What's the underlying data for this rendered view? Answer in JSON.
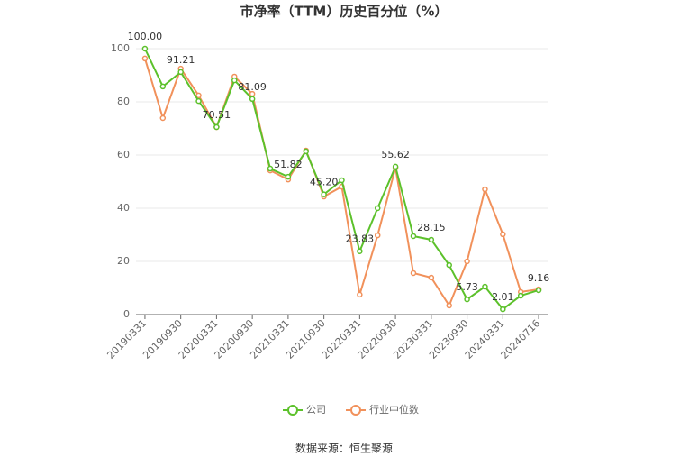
{
  "chart_data": {
    "type": "line",
    "title": "市净率（TTM）历史百分位（%）",
    "categories": [
      "20190331",
      null,
      "20190930",
      null,
      "20200331",
      null,
      "20200930",
      null,
      "20210331",
      null,
      "20210930",
      null,
      "20220331",
      null,
      "20220930",
      null,
      "20230331",
      null,
      "20230930",
      null,
      "20240331",
      null,
      "20240716"
    ],
    "series": [
      {
        "name": "公司",
        "color": "#5cc12b",
        "values": [
          100.0,
          85.8,
          91.21,
          80.3,
          70.51,
          88.1,
          81.09,
          54.9,
          51.82,
          61.4,
          45.2,
          50.5,
          23.83,
          40,
          55.62,
          29.5,
          28.15,
          18.6,
          5.73,
          10.5,
          2.01,
          7.1,
          9.16
        ],
        "value_labels": [
          "100.00",
          null,
          "91.21",
          null,
          "70.51",
          null,
          "81.09",
          null,
          "51.82",
          null,
          "45.20",
          null,
          "23.83",
          null,
          "55.62",
          null,
          "28.15",
          null,
          "5.73",
          null,
          "2.01",
          null,
          "9.16"
        ]
      },
      {
        "name": "行业中位数",
        "color": "#f1915b",
        "values": [
          96.3,
          73.9,
          92.5,
          82.4,
          70.5,
          89.5,
          83,
          54.2,
          50.8,
          61.7,
          44.4,
          48.1,
          7.5,
          29.8,
          55.2,
          15.6,
          13.9,
          3.4,
          20,
          47.1,
          30.2,
          8.5,
          9.5
        ]
      }
    ],
    "ylim": [
      0,
      100
    ],
    "yticks": [
      0,
      20,
      40,
      60,
      80,
      100
    ],
    "grid": true,
    "legend": "bottom",
    "source": "数据来源：恒生聚源"
  }
}
